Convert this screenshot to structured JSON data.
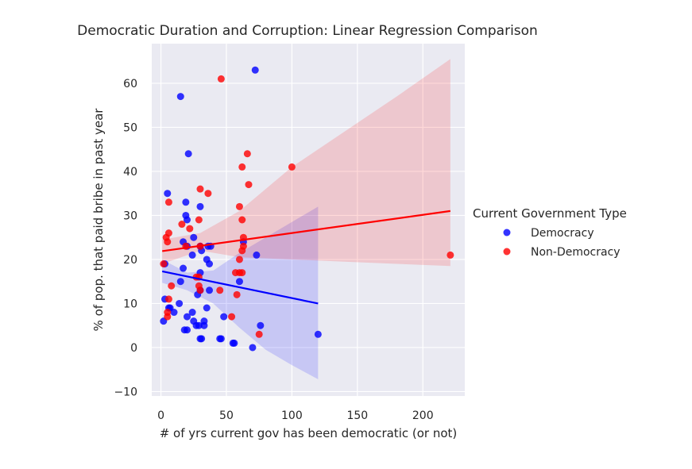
{
  "chart_data": {
    "type": "scatter",
    "title": "Democratic Duration and Corruption: Linear Regression Comparison",
    "xlabel": "# of yrs current gov has been democratic (or not)",
    "ylabel": "% of pop. that paid bribe in past year",
    "xlim": [
      -7,
      232
    ],
    "ylim": [
      -11,
      69
    ],
    "xticks": [
      0,
      50,
      100,
      150,
      200
    ],
    "yticks": [
      -10,
      0,
      10,
      20,
      30,
      40,
      50,
      60
    ],
    "xtick_labels": [
      "0",
      "50",
      "100",
      "150",
      "200"
    ],
    "ytick_labels": [
      "−10",
      "0",
      "10",
      "20",
      "30",
      "40",
      "50",
      "60"
    ],
    "grid": true,
    "legend": {
      "title": "Current Government Type",
      "placement": "right"
    },
    "series": [
      {
        "name": "Democracy",
        "color": "#0000ff",
        "points": [
          [
            72,
            63
          ],
          [
            15,
            57
          ],
          [
            21,
            44
          ],
          [
            5,
            35
          ],
          [
            19,
            33
          ],
          [
            19,
            30
          ],
          [
            30,
            32
          ],
          [
            20,
            29
          ],
          [
            17,
            24
          ],
          [
            20,
            23
          ],
          [
            25,
            25
          ],
          [
            24,
            21
          ],
          [
            30,
            23
          ],
          [
            31,
            22
          ],
          [
            36,
            23
          ],
          [
            38,
            23
          ],
          [
            35,
            20
          ],
          [
            37,
            19
          ],
          [
            73,
            21
          ],
          [
            63,
            24
          ],
          [
            3,
            19
          ],
          [
            17,
            18
          ],
          [
            15,
            15
          ],
          [
            30,
            17
          ],
          [
            60,
            15
          ],
          [
            30,
            13
          ],
          [
            28,
            12
          ],
          [
            37,
            13
          ],
          [
            7,
            9
          ],
          [
            3,
            11
          ],
          [
            6,
            9
          ],
          [
            10,
            8
          ],
          [
            14,
            10
          ],
          [
            24,
            8
          ],
          [
            33,
            6
          ],
          [
            35,
            9
          ],
          [
            20,
            7
          ],
          [
            25,
            6
          ],
          [
            27,
            5
          ],
          [
            29,
            5
          ],
          [
            33,
            5
          ],
          [
            18,
            4
          ],
          [
            20,
            4
          ],
          [
            48,
            7
          ],
          [
            30,
            2
          ],
          [
            31,
            2
          ],
          [
            45,
            2
          ],
          [
            46,
            2
          ],
          [
            55,
            1
          ],
          [
            56,
            1
          ],
          [
            70,
            0
          ],
          [
            76,
            5
          ],
          [
            120,
            3
          ],
          [
            2,
            6
          ]
        ],
        "regression": {
          "x": [
            1,
            120
          ],
          "y": [
            17.3,
            10.0
          ]
        },
        "ci": {
          "x": [
            1,
            20,
            40,
            60,
            80,
            100,
            120
          ],
          "upper": [
            20.0,
            17.0,
            17.5,
            21.5,
            25.0,
            28.5,
            32.0
          ],
          "lower": [
            14.7,
            13.0,
            10.0,
            4.5,
            -0.5,
            -4.0,
            -7.2
          ]
        }
      },
      {
        "name": "Non-Democracy",
        "color": "#ff0000",
        "points": [
          [
            46,
            61
          ],
          [
            66,
            44
          ],
          [
            62,
            41
          ],
          [
            100,
            41
          ],
          [
            67,
            37
          ],
          [
            30,
            36
          ],
          [
            36,
            35
          ],
          [
            6,
            33
          ],
          [
            60,
            32
          ],
          [
            29,
            29
          ],
          [
            62,
            29
          ],
          [
            22,
            27
          ],
          [
            16,
            28
          ],
          [
            4,
            25
          ],
          [
            5,
            24
          ],
          [
            6,
            26
          ],
          [
            63,
            25
          ],
          [
            63,
            23
          ],
          [
            19,
            23
          ],
          [
            30,
            23
          ],
          [
            60,
            20
          ],
          [
            62,
            22
          ],
          [
            2,
            19
          ],
          [
            60,
            17
          ],
          [
            62,
            17
          ],
          [
            57,
            17
          ],
          [
            27,
            16
          ],
          [
            29,
            16
          ],
          [
            29,
            14
          ],
          [
            30,
            13
          ],
          [
            45,
            13
          ],
          [
            8,
            14
          ],
          [
            6,
            11
          ],
          [
            5,
            8
          ],
          [
            5,
            7
          ],
          [
            58,
            12
          ],
          [
            54,
            7
          ],
          [
            75,
            3
          ],
          [
            221,
            21
          ]
        ],
        "regression": {
          "x": [
            1,
            221
          ],
          "y": [
            21.9,
            31.0
          ]
        },
        "ci": {
          "x": [
            1,
            30,
            60,
            100,
            140,
            180,
            221
          ],
          "upper": [
            24.5,
            26.0,
            31.0,
            41.0,
            49.0,
            57.0,
            65.5
          ],
          "lower": [
            19.0,
            22.0,
            20.5,
            20.0,
            19.5,
            19.0,
            18.5
          ]
        }
      }
    ]
  }
}
